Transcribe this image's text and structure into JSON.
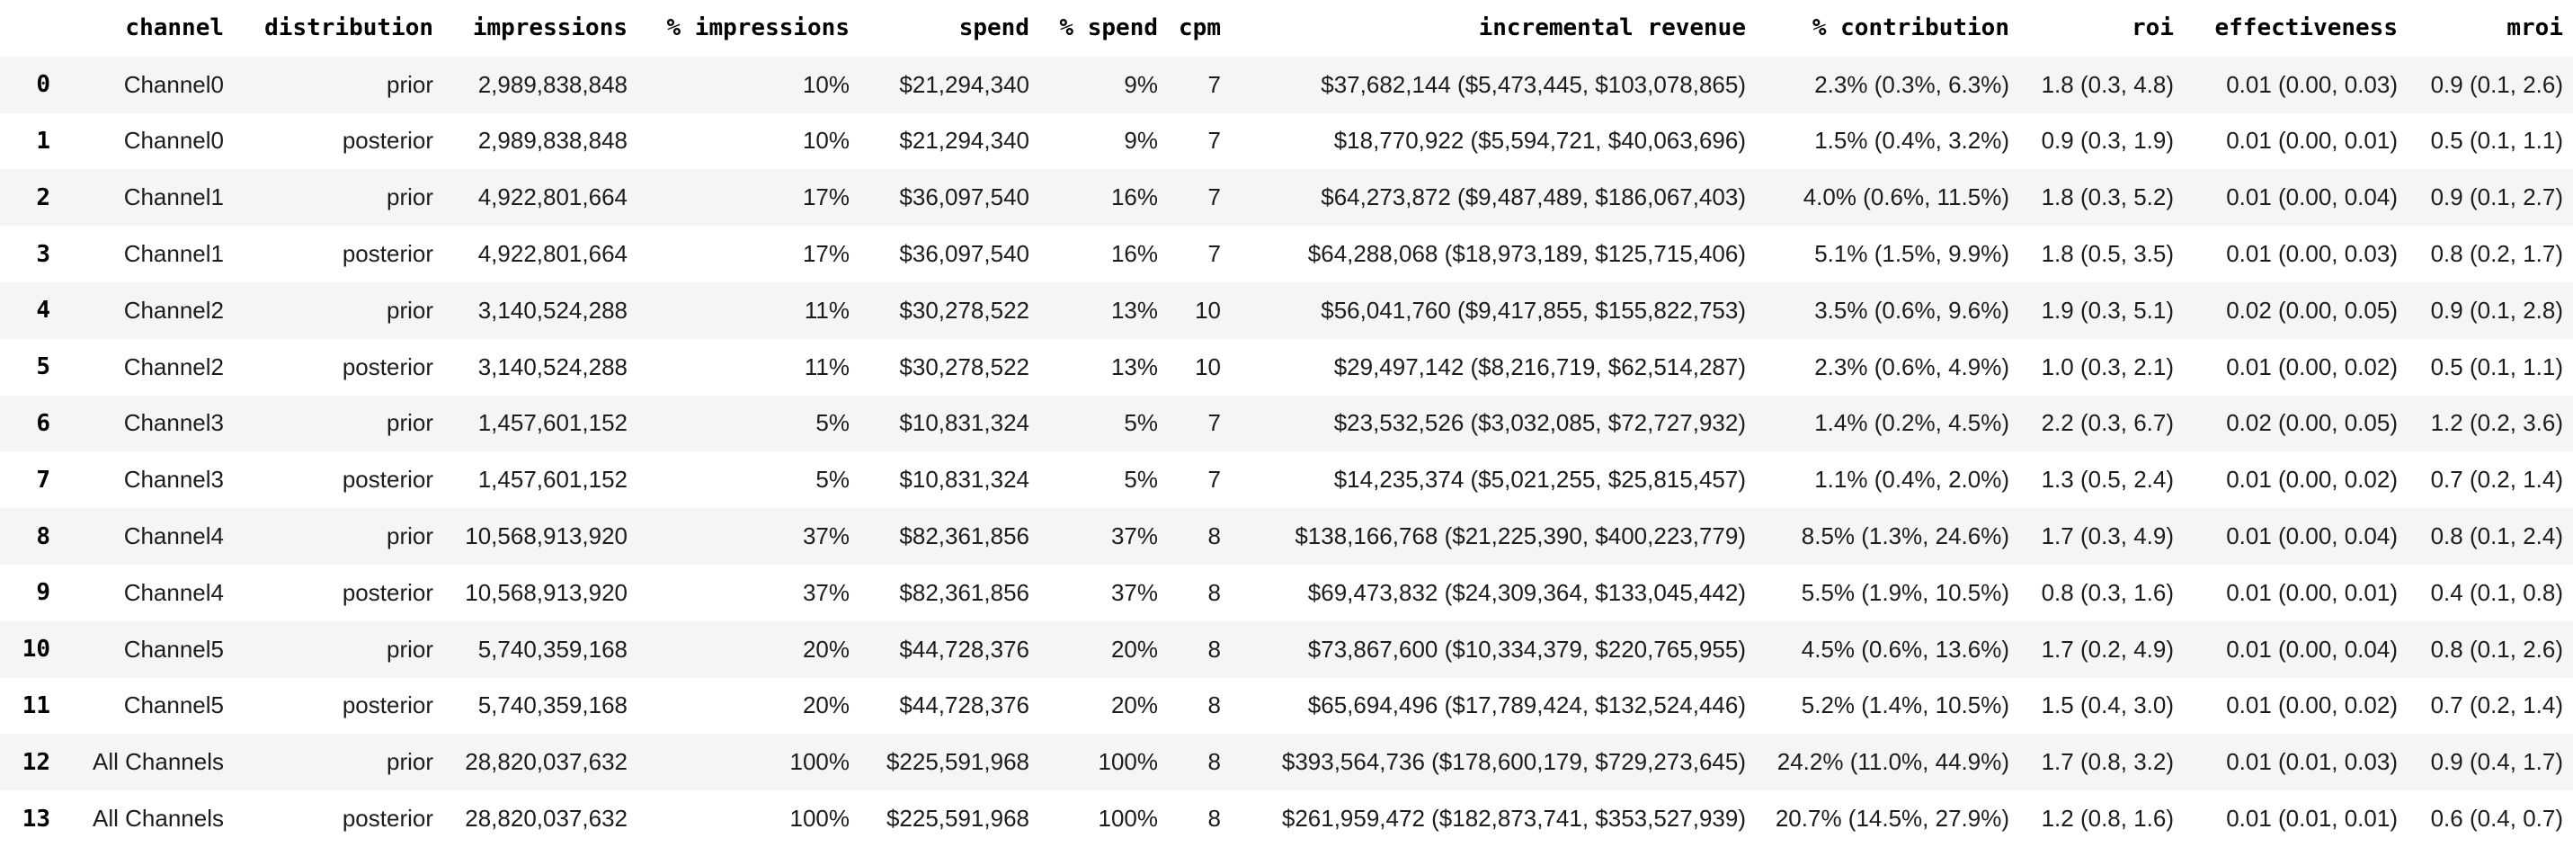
{
  "chart_data": {
    "type": "table",
    "title": "",
    "index_label": "",
    "columns": [
      "channel",
      "distribution",
      "impressions",
      "% impressions",
      "spend",
      "% spend",
      "cpm",
      "incremental revenue",
      "% contribution",
      "roi",
      "effectiveness",
      "mroi"
    ],
    "rows": [
      {
        "index": "0",
        "values": [
          "Channel0",
          "prior",
          "2,989,838,848",
          "10%",
          "$21,294,340",
          "9%",
          "7",
          "$37,682,144 ($5,473,445, $103,078,865)",
          "2.3% (0.3%, 6.3%)",
          "1.8 (0.3, 4.8)",
          "0.01 (0.00, 0.03)",
          "0.9 (0.1, 2.6)"
        ]
      },
      {
        "index": "1",
        "values": [
          "Channel0",
          "posterior",
          "2,989,838,848",
          "10%",
          "$21,294,340",
          "9%",
          "7",
          "$18,770,922 ($5,594,721, $40,063,696)",
          "1.5% (0.4%, 3.2%)",
          "0.9 (0.3, 1.9)",
          "0.01 (0.00, 0.01)",
          "0.5 (0.1, 1.1)"
        ]
      },
      {
        "index": "2",
        "values": [
          "Channel1",
          "prior",
          "4,922,801,664",
          "17%",
          "$36,097,540",
          "16%",
          "7",
          "$64,273,872 ($9,487,489, $186,067,403)",
          "4.0% (0.6%, 11.5%)",
          "1.8 (0.3, 5.2)",
          "0.01 (0.00, 0.04)",
          "0.9 (0.1, 2.7)"
        ]
      },
      {
        "index": "3",
        "values": [
          "Channel1",
          "posterior",
          "4,922,801,664",
          "17%",
          "$36,097,540",
          "16%",
          "7",
          "$64,288,068 ($18,973,189, $125,715,406)",
          "5.1% (1.5%, 9.9%)",
          "1.8 (0.5, 3.5)",
          "0.01 (0.00, 0.03)",
          "0.8 (0.2, 1.7)"
        ]
      },
      {
        "index": "4",
        "values": [
          "Channel2",
          "prior",
          "3,140,524,288",
          "11%",
          "$30,278,522",
          "13%",
          "10",
          "$56,041,760 ($9,417,855, $155,822,753)",
          "3.5% (0.6%, 9.6%)",
          "1.9 (0.3, 5.1)",
          "0.02 (0.00, 0.05)",
          "0.9 (0.1, 2.8)"
        ]
      },
      {
        "index": "5",
        "values": [
          "Channel2",
          "posterior",
          "3,140,524,288",
          "11%",
          "$30,278,522",
          "13%",
          "10",
          "$29,497,142 ($8,216,719, $62,514,287)",
          "2.3% (0.6%, 4.9%)",
          "1.0 (0.3, 2.1)",
          "0.01 (0.00, 0.02)",
          "0.5 (0.1, 1.1)"
        ]
      },
      {
        "index": "6",
        "values": [
          "Channel3",
          "prior",
          "1,457,601,152",
          "5%",
          "$10,831,324",
          "5%",
          "7",
          "$23,532,526 ($3,032,085, $72,727,932)",
          "1.4% (0.2%, 4.5%)",
          "2.2 (0.3, 6.7)",
          "0.02 (0.00, 0.05)",
          "1.2 (0.2, 3.6)"
        ]
      },
      {
        "index": "7",
        "values": [
          "Channel3",
          "posterior",
          "1,457,601,152",
          "5%",
          "$10,831,324",
          "5%",
          "7",
          "$14,235,374 ($5,021,255, $25,815,457)",
          "1.1% (0.4%, 2.0%)",
          "1.3 (0.5, 2.4)",
          "0.01 (0.00, 0.02)",
          "0.7 (0.2, 1.4)"
        ]
      },
      {
        "index": "8",
        "values": [
          "Channel4",
          "prior",
          "10,568,913,920",
          "37%",
          "$82,361,856",
          "37%",
          "8",
          "$138,166,768 ($21,225,390, $400,223,779)",
          "8.5% (1.3%, 24.6%)",
          "1.7 (0.3, 4.9)",
          "0.01 (0.00, 0.04)",
          "0.8 (0.1, 2.4)"
        ]
      },
      {
        "index": "9",
        "values": [
          "Channel4",
          "posterior",
          "10,568,913,920",
          "37%",
          "$82,361,856",
          "37%",
          "8",
          "$69,473,832 ($24,309,364, $133,045,442)",
          "5.5% (1.9%, 10.5%)",
          "0.8 (0.3, 1.6)",
          "0.01 (0.00, 0.01)",
          "0.4 (0.1, 0.8)"
        ]
      },
      {
        "index": "10",
        "values": [
          "Channel5",
          "prior",
          "5,740,359,168",
          "20%",
          "$44,728,376",
          "20%",
          "8",
          "$73,867,600 ($10,334,379, $220,765,955)",
          "4.5% (0.6%, 13.6%)",
          "1.7 (0.2, 4.9)",
          "0.01 (0.00, 0.04)",
          "0.8 (0.1, 2.6)"
        ]
      },
      {
        "index": "11",
        "values": [
          "Channel5",
          "posterior",
          "5,740,359,168",
          "20%",
          "$44,728,376",
          "20%",
          "8",
          "$65,694,496 ($17,789,424, $132,524,446)",
          "5.2% (1.4%, 10.5%)",
          "1.5 (0.4, 3.0)",
          "0.01 (0.00, 0.02)",
          "0.7 (0.2, 1.4)"
        ]
      },
      {
        "index": "12",
        "values": [
          "All Channels",
          "prior",
          "28,820,037,632",
          "100%",
          "$225,591,968",
          "100%",
          "8",
          "$393,564,736 ($178,600,179, $729,273,645)",
          "24.2% (11.0%, 44.9%)",
          "1.7 (0.8, 3.2)",
          "0.01 (0.01, 0.03)",
          "0.9 (0.4, 1.7)"
        ]
      },
      {
        "index": "13",
        "values": [
          "All Channels",
          "posterior",
          "28,820,037,632",
          "100%",
          "$225,591,968",
          "100%",
          "8",
          "$261,959,472 ($182,873,741, $353,527,939)",
          "20.7% (14.5%, 27.9%)",
          "1.2 (0.8, 1.6)",
          "0.01 (0.01, 0.01)",
          "0.6 (0.4, 0.7)"
        ]
      }
    ]
  },
  "style": {
    "zebra_row_color": "#f5f5f5",
    "background_color": "#ffffff",
    "header_text_color": "#000000",
    "body_text_color": "#1c1c1c"
  }
}
